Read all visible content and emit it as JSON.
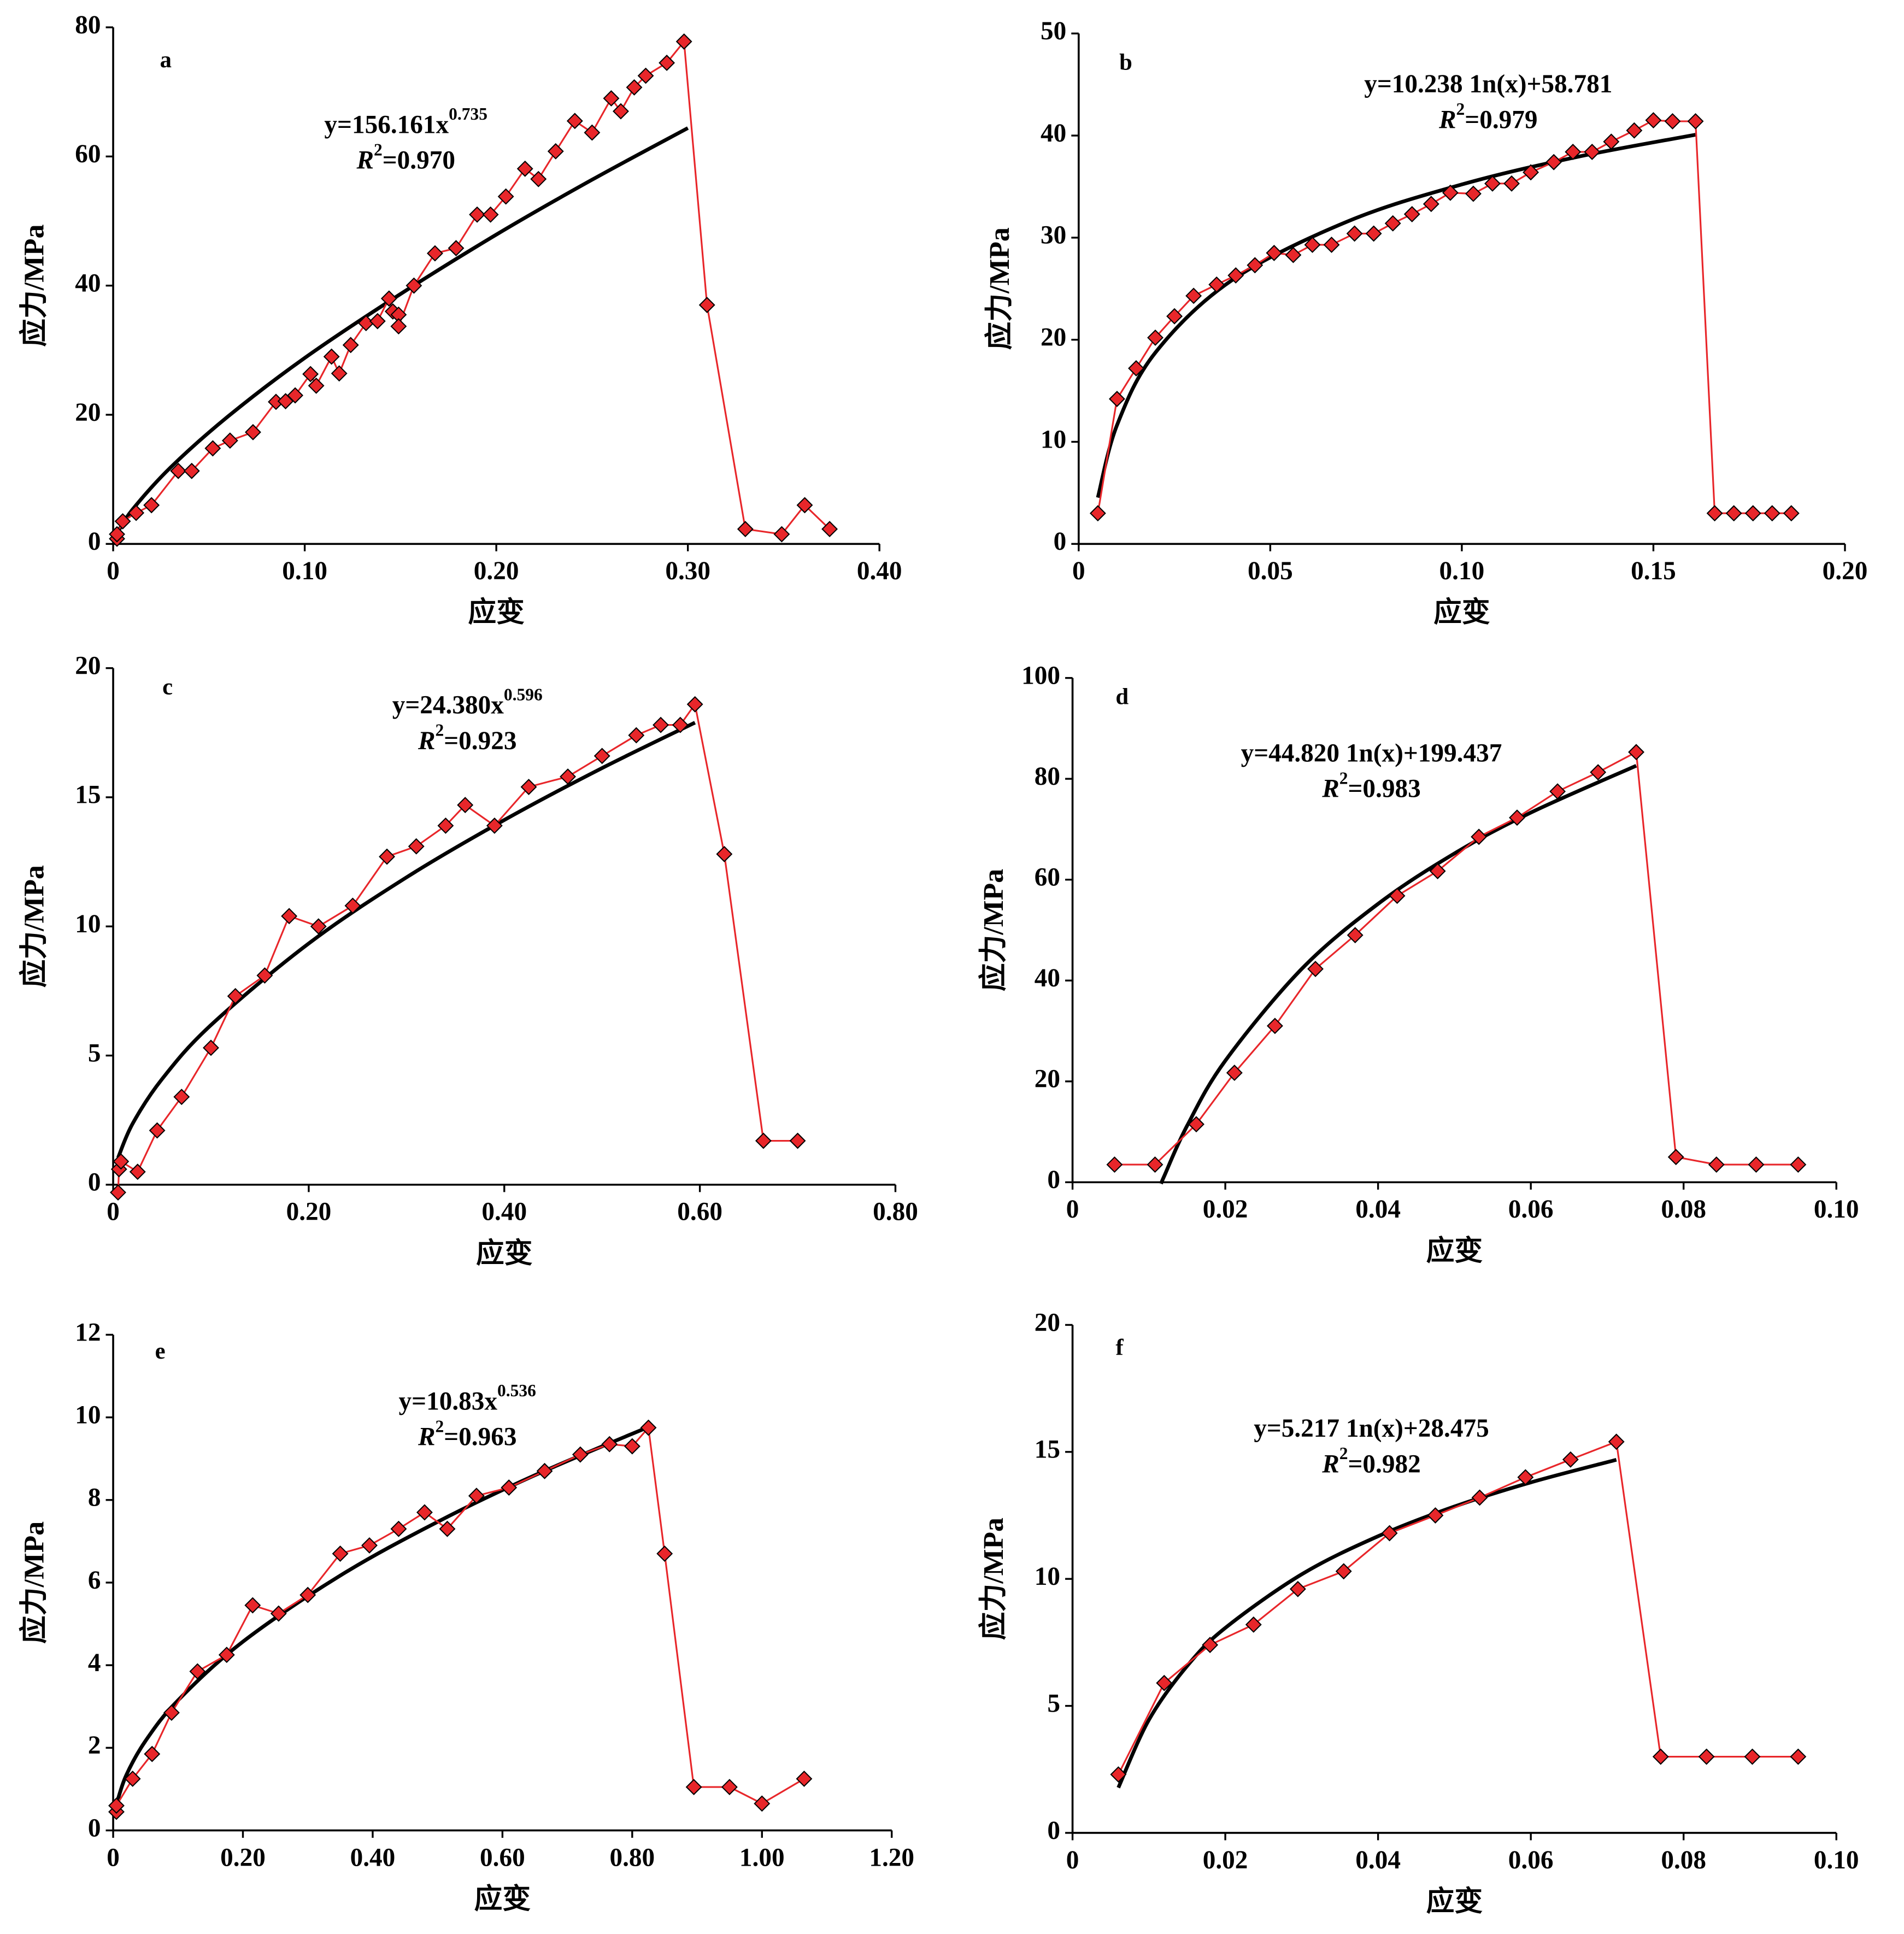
{
  "chart_data": [
    {
      "type": "line",
      "label": "a",
      "xlabel": "应变",
      "ylabel": "应力/MPa",
      "equation": {
        "text": "y=156.161x",
        "sup": "0.735"
      },
      "r2": {
        "text": "R",
        "sup": "2",
        "rest": "=0.970"
      },
      "xlim": [
        0,
        0.4
      ],
      "ylim": [
        0,
        80
      ],
      "xticks": [
        0,
        {
          "value": 0.1,
          "label": "0.10"
        },
        {
          "value": 0.2,
          "label": "0.20"
        },
        {
          "value": 0.3,
          "label": "0.30"
        },
        {
          "value": 0.4,
          "label": "0.40"
        }
      ],
      "yticks": [
        0,
        20,
        40,
        60,
        80
      ],
      "series": [
        {
          "color": "#e8262a",
          "marker": "diamond",
          "x": [
            0.002,
            0.002,
            0.005,
            0.012,
            0.02,
            0.034,
            0.041,
            0.052,
            0.061,
            0.073,
            0.085,
            0.09,
            0.095,
            0.103,
            0.106,
            0.114,
            0.118,
            0.124,
            0.132,
            0.138,
            0.144,
            0.146,
            0.149,
            0.149,
            0.157,
            0.168,
            0.179,
            0.19,
            0.197,
            0.205,
            0.215,
            0.222,
            0.231,
            0.241,
            0.25,
            0.26,
            0.265,
            0.272,
            0.278,
            0.289,
            0.298,
            0.31,
            0.33,
            0.349,
            0.361,
            0.374
          ],
          "values": [
            0.8,
            1.5,
            3.5,
            4.8,
            6,
            11.3,
            11.3,
            14.8,
            16,
            17.3,
            22,
            22.1,
            23,
            26.3,
            24.5,
            29,
            26.4,
            30.8,
            34.2,
            34.5,
            38,
            36,
            35.5,
            33.7,
            40,
            45,
            45.8,
            51,
            51,
            53.8,
            58.1,
            56.5,
            60.8,
            65.5,
            63.7,
            69,
            67,
            70.7,
            72.5,
            74.5,
            77.8,
            37,
            2.3,
            1.5,
            6,
            2.3
          ]
        },
        {
          "color": "#000000",
          "smooth": true,
          "x": [
            0.002,
            0.01,
            0.03,
            0.06,
            0.1,
            0.15,
            0.2,
            0.25,
            0.3
          ],
          "values": [
            1.62,
            5.29,
            11.85,
            19.75,
            28.8,
            38.7,
            47.9,
            56.4,
            64.4
          ]
        }
      ]
    },
    {
      "type": "line",
      "label": "b",
      "xlabel": "应变",
      "ylabel": "应力/MPa",
      "equation": {
        "text": "y=10.238 1n(x)+58.781"
      },
      "r2": {
        "text": "R",
        "sup": "2",
        "rest": "=0.979"
      },
      "xlim": [
        0,
        0.2
      ],
      "ylim": [
        0,
        50
      ],
      "xticks": [
        0,
        0.05,
        {
          "value": 0.1,
          "label": "0.10"
        },
        0.15,
        {
          "value": 0.2,
          "label": "0.20"
        }
      ],
      "yticks": [
        0,
        10,
        20,
        30,
        40,
        50
      ],
      "series": [
        {
          "color": "#e8262a",
          "marker": "diamond",
          "x": [
            0.005,
            0.01,
            0.015,
            0.02,
            0.025,
            0.03,
            0.036,
            0.041,
            0.046,
            0.051,
            0.056,
            0.061,
            0.066,
            0.072,
            0.077,
            0.082,
            0.087,
            0.092,
            0.097,
            0.103,
            0.108,
            0.113,
            0.118,
            0.124,
            0.129,
            0.134,
            0.139,
            0.145,
            0.15,
            0.155,
            0.161,
            0.166,
            0.171,
            0.176,
            0.181,
            0.186
          ],
          "values": [
            3,
            14.2,
            17.2,
            20.2,
            22.3,
            24.3,
            25.4,
            26.3,
            27.3,
            28.5,
            28.3,
            29.3,
            29.3,
            30.4,
            30.4,
            31.4,
            32.3,
            33.3,
            34.4,
            34.3,
            35.3,
            35.3,
            36.4,
            37.4,
            38.4,
            38.4,
            39.4,
            40.5,
            41.5,
            41.4,
            41.4,
            3,
            3,
            3,
            3,
            3
          ]
        },
        {
          "color": "#000000",
          "smooth": true,
          "x": [
            0.005,
            0.01,
            0.02,
            0.04,
            0.07,
            0.1,
            0.13,
            0.161
          ],
          "values": [
            4.54,
            11.63,
            18.73,
            25.83,
            31.56,
            35.21,
            37.9,
            40.08
          ]
        }
      ]
    },
    {
      "type": "line",
      "label": "c",
      "xlabel": "应变",
      "ylabel": "应力/MPa",
      "equation": {
        "text": "y=24.380x",
        "sup": "0.596"
      },
      "r2": {
        "text": "R",
        "sup": "2",
        "rest": "=0.923"
      },
      "xlim": [
        0,
        0.8
      ],
      "ylim": [
        0,
        20
      ],
      "xticks": [
        0,
        {
          "value": 0.2,
          "label": "0.20"
        },
        {
          "value": 0.4,
          "label": "0.40"
        },
        {
          "value": 0.6,
          "label": "0.60"
        },
        {
          "value": 0.8,
          "label": "0.80"
        }
      ],
      "yticks": [
        0,
        5,
        10,
        15,
        20
      ],
      "series": [
        {
          "color": "#e8262a",
          "marker": "diamond",
          "x": [
            0.005,
            0.006,
            0.008,
            0.025,
            0.045,
            0.07,
            0.1,
            0.125,
            0.155,
            0.18,
            0.21,
            0.245,
            0.28,
            0.31,
            0.34,
            0.36,
            0.39,
            0.425,
            0.465,
            0.5,
            0.535,
            0.56,
            0.58,
            0.595,
            0.625,
            0.665,
            0.7
          ],
          "values": [
            -0.3,
            0.6,
            0.9,
            0.5,
            2.1,
            3.4,
            5.3,
            7.3,
            8.1,
            10.4,
            10,
            10.8,
            12.7,
            13.1,
            13.9,
            14.7,
            13.9,
            15.4,
            15.8,
            16.6,
            17.4,
            17.8,
            17.8,
            18.6,
            12.8,
            1.7,
            1.7
          ]
        },
        {
          "color": "#000000",
          "smooth": true,
          "x": [
            0.005,
            0.02,
            0.05,
            0.1,
            0.2,
            0.3,
            0.4,
            0.5,
            0.595
          ],
          "values": [
            1.04,
            2.37,
            4.09,
            6.18,
            9.34,
            11.9,
            14.12,
            16.13,
            17.89
          ]
        }
      ]
    },
    {
      "type": "line",
      "label": "d",
      "xlabel": "应变",
      "ylabel": "应力/MPa",
      "equation": {
        "text": "y=44.820 1n(x)+199.437"
      },
      "r2": {
        "text": "R",
        "sup": "2",
        "rest": "=0.983"
      },
      "xlim": [
        0,
        0.1
      ],
      "ylim": [
        0,
        100
      ],
      "xticks": [
        0,
        0.02,
        0.04,
        0.06,
        0.08,
        {
          "value": 0.1,
          "label": "0.10"
        }
      ],
      "yticks": [
        0,
        20,
        40,
        60,
        80,
        100
      ],
      "series": [
        {
          "color": "#e8262a",
          "marker": "diamond",
          "x": [
            0.0055,
            0.0108,
            0.0162,
            0.0212,
            0.0265,
            0.0318,
            0.037,
            0.0425,
            0.0478,
            0.0532,
            0.0582,
            0.0635,
            0.0688,
            0.0738,
            0.079,
            0.0843,
            0.0895,
            0.095
          ],
          "values": [
            3.5,
            3.5,
            11.5,
            21.7,
            31,
            42.3,
            49,
            56.8,
            61.7,
            68.5,
            72.3,
            77.5,
            81.3,
            85.3,
            5,
            3.5,
            3.5,
            3.5
          ]
        },
        {
          "color": "#000000",
          "smooth": true,
          "x": [
            0.0116,
            0.012,
            0.015,
            0.02,
            0.03,
            0.04,
            0.05,
            0.06,
            0.0738
          ],
          "values": [
            -0.3,
            1.2,
            11.2,
            24.1,
            42.3,
            55.2,
            65.2,
            73.3,
            82.6
          ]
        }
      ]
    },
    {
      "type": "line",
      "label": "e",
      "xlabel": "应变",
      "ylabel": "应力/MPa",
      "equation": {
        "text": "y=10.83x",
        "sup": "0.536"
      },
      "r2": {
        "text": "R",
        "sup": "2",
        "rest": "=0.963"
      },
      "xlim": [
        0,
        1.2
      ],
      "ylim": [
        0,
        12
      ],
      "xticks": [
        0,
        {
          "value": 0.2,
          "label": "0.20"
        },
        {
          "value": 0.4,
          "label": "0.40"
        },
        {
          "value": 0.6,
          "label": "0.60"
        },
        {
          "value": 0.8,
          "label": "0.80"
        },
        {
          "value": 1,
          "label": "1.00"
        },
        {
          "value": 1.2,
          "label": "1.20"
        }
      ],
      "yticks": [
        0,
        2,
        4,
        6,
        8,
        10,
        12
      ],
      "series": [
        {
          "color": "#e8262a",
          "marker": "diamond",
          "x": [
            0.005,
            0.005,
            0.03,
            0.06,
            0.09,
            0.13,
            0.175,
            0.215,
            0.255,
            0.3,
            0.35,
            0.395,
            0.44,
            0.48,
            0.515,
            0.56,
            0.61,
            0.665,
            0.72,
            0.765,
            0.8,
            0.825,
            0.85,
            0.895,
            0.95,
            1.0,
            1.065
          ],
          "values": [
            0.45,
            0.6,
            1.25,
            1.85,
            2.85,
            3.85,
            4.25,
            5.45,
            5.25,
            5.7,
            6.7,
            6.9,
            7.3,
            7.7,
            7.3,
            8.1,
            8.3,
            8.7,
            9.1,
            9.35,
            9.3,
            9.75,
            6.7,
            1.05,
            1.05,
            0.65,
            1.25
          ]
        },
        {
          "color": "#000000",
          "smooth": true,
          "x": [
            0.005,
            0.02,
            0.05,
            0.1,
            0.2,
            0.35,
            0.5,
            0.65,
            0.83
          ],
          "values": [
            0.63,
            1.33,
            2.17,
            3.15,
            4.57,
            6.17,
            7.47,
            8.6,
            9.8
          ]
        }
      ]
    },
    {
      "type": "line",
      "label": "f",
      "xlabel": "应变",
      "ylabel": "应力/MPa",
      "equation": {
        "text": "y=5.217 1n(x)+28.475"
      },
      "r2": {
        "text": "R",
        "sup": "2",
        "rest": "=0.982"
      },
      "xlim": [
        0,
        0.1
      ],
      "ylim": [
        0,
        20
      ],
      "xticks": [
        0,
        0.02,
        0.04,
        0.06,
        0.08,
        {
          "value": 0.1,
          "label": "0.10"
        }
      ],
      "yticks": [
        0,
        5,
        10,
        15,
        20
      ],
      "series": [
        {
          "color": "#e8262a",
          "marker": "diamond",
          "x": [
            0.006,
            0.012,
            0.018,
            0.0237,
            0.0295,
            0.0355,
            0.0415,
            0.0475,
            0.0533,
            0.0593,
            0.0652,
            0.0712,
            0.077,
            0.083,
            0.089,
            0.095
          ],
          "values": [
            2.3,
            5.9,
            7.4,
            8.2,
            9.6,
            10.3,
            11.8,
            12.5,
            13.2,
            14,
            14.7,
            15.4,
            3,
            3,
            3,
            3
          ]
        },
        {
          "color": "#000000",
          "smooth": true,
          "x": [
            0.006,
            0.01,
            0.015,
            0.02,
            0.03,
            0.04,
            0.05,
            0.06,
            0.0712
          ],
          "values": [
            1.78,
            4.45,
            6.57,
            8.07,
            10.18,
            11.68,
            12.85,
            13.8,
            14.69
          ]
        }
      ]
    }
  ]
}
